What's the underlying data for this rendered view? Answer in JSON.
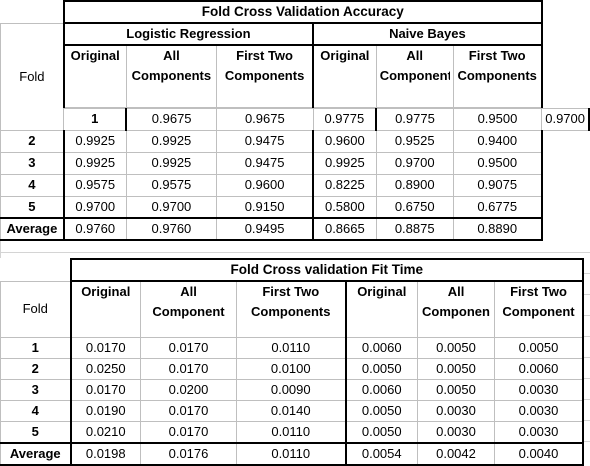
{
  "accuracy": {
    "title": "Fold Cross Validation Accuracy",
    "group_lr": "Logistic Regression",
    "group_nb": "Naive Bayes",
    "fold_header": "Fold",
    "lr_cols": [
      "Original",
      "All Components",
      "First Two Components"
    ],
    "nb_cols": [
      "Original",
      "All Components",
      "First Two Components"
    ],
    "rows": [
      {
        "fold": "1",
        "values": [
          "0.9675",
          "0.9675",
          "0.9775",
          "0.9775",
          "0.9500",
          "0.9700"
        ]
      },
      {
        "fold": "2",
        "values": [
          "0.9925",
          "0.9925",
          "0.9475",
          "0.9600",
          "0.9525",
          "0.9400"
        ]
      },
      {
        "fold": "3",
        "values": [
          "0.9925",
          "0.9925",
          "0.9475",
          "0.9925",
          "0.9700",
          "0.9500"
        ]
      },
      {
        "fold": "4",
        "values": [
          "0.9575",
          "0.9575",
          "0.9600",
          "0.8225",
          "0.8900",
          "0.9075"
        ]
      },
      {
        "fold": "5",
        "values": [
          "0.9700",
          "0.9700",
          "0.9150",
          "0.5800",
          "0.6750",
          "0.6775"
        ]
      }
    ],
    "average": {
      "label": "Average",
      "values": [
        "0.9760",
        "0.9760",
        "0.9495",
        "0.8665",
        "0.8875",
        "0.8890"
      ]
    }
  },
  "fit_time": {
    "title": "Fold Cross validation Fit Time",
    "fold_header": "Fold",
    "lr_cols": [
      "Original",
      "All Component",
      "First Two Components"
    ],
    "nb_cols": [
      "Original",
      "All Componen",
      "First Two Component"
    ],
    "rows": [
      {
        "fold": "1",
        "values": [
          "0.0170",
          "0.0170",
          "0.0110",
          "0.0060",
          "0.0050",
          "0.0050"
        ]
      },
      {
        "fold": "2",
        "values": [
          "0.0250",
          "0.0170",
          "0.0100",
          "0.0050",
          "0.0050",
          "0.0060"
        ]
      },
      {
        "fold": "3",
        "values": [
          "0.0170",
          "0.0200",
          "0.0090",
          "0.0060",
          "0.0050",
          "0.0030"
        ]
      },
      {
        "fold": "4",
        "values": [
          "0.0190",
          "0.0170",
          "0.0140",
          "0.0050",
          "0.0030",
          "0.0030"
        ]
      },
      {
        "fold": "5",
        "values": [
          "0.0210",
          "0.0170",
          "0.0110",
          "0.0050",
          "0.0030",
          "0.0030"
        ]
      }
    ],
    "average": {
      "label": "Average",
      "values": [
        "0.0198",
        "0.0176",
        "0.0110",
        "0.0054",
        "0.0042",
        "0.0040"
      ]
    }
  }
}
